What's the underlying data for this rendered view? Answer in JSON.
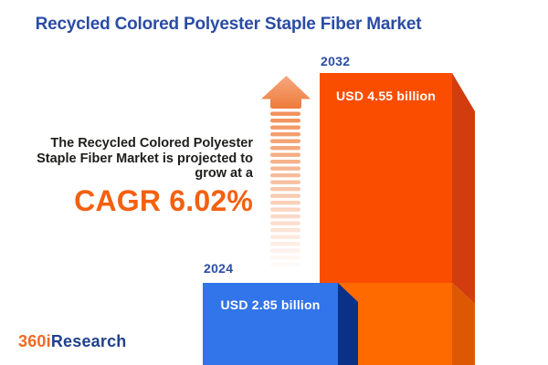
{
  "title": "Recycled Colored Polyester Staple Fiber Market",
  "description": {
    "line1": "The Recycled Colored Polyester",
    "line2": "Staple Fiber Market is projected to",
    "line3": "grow at a",
    "cagr": "CAGR 6.02%"
  },
  "chart_data": {
    "type": "bar",
    "title": "Recycled Colored Polyester Staple Fiber Market",
    "categories": [
      "2024",
      "2032"
    ],
    "values": [
      2.85,
      4.55
    ],
    "unit": "USD billion",
    "value_labels": [
      "USD 2.85 billion",
      "USD 4.55 billion"
    ],
    "cagr_percent": "6.02%",
    "bar_colors": [
      "#3274E9",
      "#FB4D00"
    ],
    "orientation": "vertical",
    "legend": "none",
    "grid": false
  },
  "bars": {
    "b2024": {
      "year": "2024",
      "value_label": "USD 2.85 billion"
    },
    "b2032": {
      "year": "2032",
      "value_label": "USD 4.55 billion"
    }
  },
  "logo": {
    "part1": "360i",
    "part2": "Research"
  },
  "colors": {
    "title_blue": "#2A4CA4",
    "text_dark": "#1D1D1B",
    "accent_orange": "#F4600F",
    "blue_bar_front": "#3274E9",
    "blue_bar_side": "#0A3187",
    "orange_bar_front_top": "#FB4D00",
    "orange_bar_front_bottom": "#FF6A00",
    "orange_bar_side_top": "#D23D0F",
    "orange_bar_side_bottom": "#DE5803",
    "arrow_orange": "#F08A50",
    "logo_orange": "#F26A21",
    "logo_navy": "#21418C"
  }
}
